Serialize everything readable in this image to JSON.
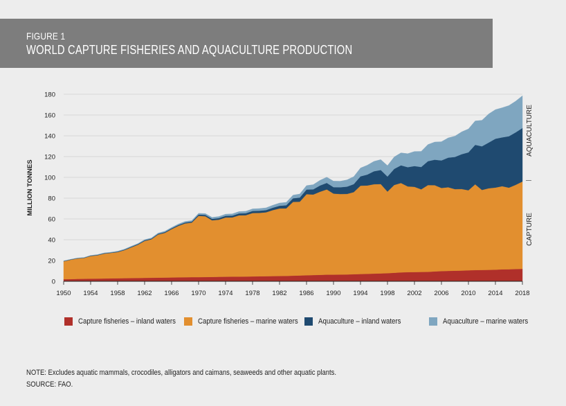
{
  "header": {
    "figure_number": "FIGURE 1",
    "title": "WORLD CAPTURE FISHERIES AND AQUACULTURE PRODUCTION"
  },
  "chart_data": {
    "type": "area",
    "stacked": true,
    "ylabel": "MILLION TONNES",
    "ylim": [
      0,
      180
    ],
    "xlim": [
      1950,
      2018
    ],
    "x_ticks": [
      1950,
      1954,
      1958,
      1962,
      1966,
      1970,
      1974,
      1978,
      1982,
      1986,
      1990,
      1994,
      1998,
      2002,
      2006,
      2010,
      2014,
      2018
    ],
    "y_ticks": [
      0,
      20,
      40,
      60,
      80,
      100,
      120,
      140,
      160,
      180
    ],
    "grid": true,
    "side_labels": {
      "upper": "AQUACULTURE",
      "lower": "CAPTURE"
    },
    "x": [
      1950,
      1951,
      1952,
      1953,
      1954,
      1955,
      1956,
      1957,
      1958,
      1959,
      1960,
      1961,
      1962,
      1963,
      1964,
      1965,
      1966,
      1967,
      1968,
      1969,
      1970,
      1971,
      1972,
      1973,
      1974,
      1975,
      1976,
      1977,
      1978,
      1979,
      1980,
      1981,
      1982,
      1983,
      1984,
      1985,
      1986,
      1987,
      1988,
      1989,
      1990,
      1991,
      1992,
      1993,
      1994,
      1995,
      1996,
      1997,
      1998,
      1999,
      2000,
      2001,
      2002,
      2003,
      2004,
      2005,
      2006,
      2007,
      2008,
      2009,
      2010,
      2011,
      2012,
      2013,
      2014,
      2015,
      2016,
      2017,
      2018
    ],
    "series": [
      {
        "name": "Capture fisheries – inland waters",
        "color": "#b0302a",
        "values": [
          2.0,
          2.1,
          2.3,
          2.4,
          2.5,
          2.6,
          2.7,
          2.8,
          2.9,
          3.0,
          3.1,
          3.2,
          3.3,
          3.4,
          3.5,
          3.6,
          3.7,
          3.8,
          3.9,
          4.0,
          4.0,
          4.1,
          4.2,
          4.3,
          4.4,
          4.5,
          4.5,
          4.6,
          4.7,
          4.8,
          4.9,
          5.0,
          5.1,
          5.2,
          5.4,
          5.6,
          5.8,
          6.0,
          6.2,
          6.4,
          6.4,
          6.5,
          6.6,
          6.8,
          7.0,
          7.2,
          7.4,
          7.6,
          7.8,
          8.2,
          8.6,
          8.8,
          8.9,
          9.0,
          9.1,
          9.5,
          9.8,
          10.0,
          10.2,
          10.3,
          10.6,
          10.8,
          10.9,
          11.0,
          11.2,
          11.5,
          11.6,
          11.8,
          12.0
        ]
      },
      {
        "name": "Capture fisheries – marine waters",
        "color": "#e28f2f",
        "values": [
          17.2,
          18.6,
          19.6,
          20.0,
          21.8,
          22.4,
          23.9,
          24.5,
          25.2,
          27.0,
          29.5,
          32.0,
          35.5,
          37.0,
          41.5,
          43.0,
          46.5,
          49.5,
          51.8,
          52.5,
          59.0,
          58.5,
          54.5,
          55.0,
          57.0,
          57.0,
          59.0,
          59.0,
          61.0,
          61.0,
          61.5,
          63.5,
          65.0,
          65.0,
          71.0,
          71.0,
          78.0,
          77.5,
          80.0,
          82.0,
          78.0,
          77.5,
          77.5,
          79.0,
          85.0,
          85.0,
          86.0,
          86.0,
          78.5,
          84.5,
          86.0,
          82.5,
          82.0,
          79.5,
          83.5,
          83.0,
          80.0,
          80.5,
          78.5,
          78.5,
          77.0,
          82.5,
          77.0,
          78.5,
          79.0,
          80.0,
          78.5,
          81.0,
          84.0
        ]
      },
      {
        "name": "Aquaculture – inland waters",
        "color": "#1f4a70",
        "values": [
          0.3,
          0.3,
          0.3,
          0.3,
          0.4,
          0.4,
          0.4,
          0.4,
          0.5,
          0.5,
          0.6,
          0.6,
          0.7,
          0.7,
          0.7,
          0.8,
          0.8,
          0.9,
          0.9,
          1.0,
          1.2,
          1.3,
          1.4,
          1.5,
          1.6,
          1.7,
          1.8,
          1.9,
          2.0,
          2.1,
          2.1,
          2.3,
          2.6,
          3.0,
          3.5,
          4.0,
          4.5,
          5.0,
          6.0,
          6.3,
          6.2,
          6.5,
          7.0,
          7.7,
          9.0,
          10.5,
          12.5,
          13.5,
          14.5,
          15.5,
          17.0,
          18.5,
          20.0,
          21.5,
          23.0,
          24.5,
          26.5,
          28.5,
          31.0,
          33.5,
          36.5,
          38.0,
          42.0,
          44.0,
          47.0,
          47.0,
          49.5,
          50.5,
          51.5
        ]
      },
      {
        "name": "Aquaculture – marine waters",
        "color": "#7fa6c0",
        "values": [
          0.1,
          0.1,
          0.2,
          0.2,
          0.2,
          0.3,
          0.3,
          0.3,
          0.4,
          0.4,
          0.5,
          0.5,
          0.6,
          0.6,
          0.7,
          0.8,
          0.8,
          0.9,
          1.0,
          1.0,
          1.2,
          1.3,
          1.4,
          1.5,
          1.6,
          1.7,
          1.8,
          1.9,
          2.0,
          2.1,
          2.2,
          2.4,
          2.6,
          2.8,
          3.0,
          3.4,
          3.8,
          4.5,
          5.0,
          5.5,
          5.8,
          5.8,
          6.5,
          7.2,
          8.0,
          9.0,
          9.5,
          10.0,
          10.5,
          11.5,
          12.0,
          13.0,
          14.0,
          15.0,
          16.0,
          17.0,
          18.0,
          19.0,
          20.0,
          21.5,
          22.5,
          23.0,
          25.0,
          27.5,
          28.0,
          28.5,
          29.5,
          30.0,
          31.0
        ]
      }
    ]
  },
  "note": "NOTE: Excludes aquatic mammals, crocodiles, alligators and caimans, seaweeds and other aquatic plants.",
  "source": "SOURCE: FAO."
}
